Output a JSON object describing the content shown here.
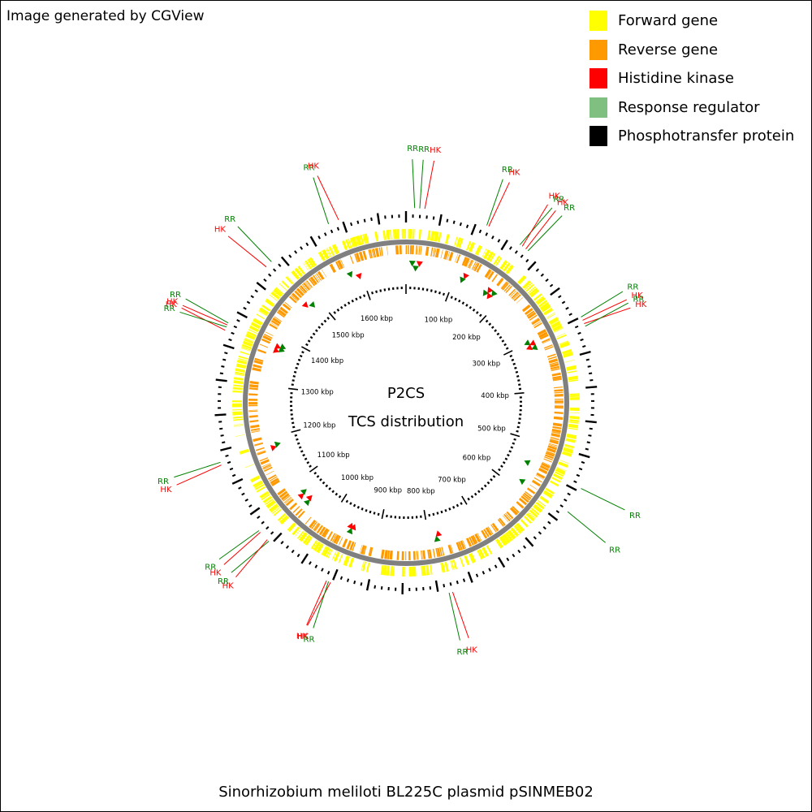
{
  "credit": "Image generated by CGView",
  "caption": "Sinorhizobium meliloti BL225C plasmid pSINMEB02",
  "center_title": "P2CS",
  "center_subtitle": "TCS distribution",
  "legend": [
    {
      "label": "Forward gene",
      "color": "#ffff00"
    },
    {
      "label": "Reverse gene",
      "color": "#ff9900"
    },
    {
      "label": "Histidine kinase",
      "color": "#ff0000"
    },
    {
      "label": "Response regulator",
      "color": "#7fbf7f"
    },
    {
      "label": "Phosphotransfer protein",
      "color": "#000000"
    }
  ],
  "colors": {
    "forward": "#ffff00",
    "reverse": "#ff9900",
    "hk": "#ff0000",
    "rr": "#008000",
    "backbone": "#808080",
    "ticks": "#000000"
  },
  "chart_data": {
    "type": "circular-genome-map",
    "genome_length_kbp": 1690,
    "tick_labels": [
      "100 kbp",
      "200 kbp",
      "300 kbp",
      "400 kbp",
      "500 kbp",
      "600 kbp",
      "700 kbp",
      "800 kbp",
      "900 kbp",
      "1000 kbp",
      "1100 kbp",
      "1200 kbp",
      "1300 kbp",
      "1400 kbp",
      "1500 kbp",
      "1600 kbp"
    ],
    "features": [
      {
        "label": "RR",
        "type": "RR",
        "pos_kbp": 12,
        "strand": "reverse"
      },
      {
        "label": "RR",
        "type": "RR",
        "pos_kbp": 19,
        "strand": "reverse"
      },
      {
        "label": "HK",
        "type": "HK",
        "pos_kbp": 26,
        "strand": "reverse"
      },
      {
        "label": "RR",
        "type": "RR",
        "pos_kbp": 115,
        "strand": "reverse"
      },
      {
        "label": "HK",
        "type": "HK",
        "pos_kbp": 118,
        "strand": "reverse"
      },
      {
        "label": "RR",
        "type": "RR",
        "pos_kbp": 168,
        "strand": "reverse"
      },
      {
        "label": "HK",
        "type": "HK",
        "pos_kbp": 172,
        "strand": "reverse"
      },
      {
        "label": "HK",
        "type": "HK",
        "pos_kbp": 178,
        "strand": "reverse"
      },
      {
        "label": "RR",
        "type": "RR",
        "pos_kbp": 182,
        "strand": "reverse"
      },
      {
        "label": "RR",
        "type": "RR",
        "pos_kbp": 300,
        "strand": "reverse"
      },
      {
        "label": "HK",
        "type": "HK",
        "pos_kbp": 305,
        "strand": "reverse"
      },
      {
        "label": "HK",
        "type": "HK",
        "pos_kbp": 310,
        "strand": "reverse"
      },
      {
        "label": "RR",
        "type": "RR",
        "pos_kbp": 314,
        "strand": "reverse"
      },
      {
        "label": "RR",
        "type": "RR",
        "pos_kbp": 545,
        "strand": "reverse"
      },
      {
        "label": "RR",
        "type": "RR",
        "pos_kbp": 582,
        "strand": "reverse"
      },
      {
        "label": "HK",
        "type": "HK",
        "pos_kbp": 780,
        "strand": "reverse"
      },
      {
        "label": "RR",
        "type": "RR",
        "pos_kbp": 785,
        "strand": "reverse"
      },
      {
        "label": "HK",
        "type": "HK",
        "pos_kbp": 952,
        "strand": "reverse"
      },
      {
        "label": "RR",
        "type": "RR",
        "pos_kbp": 955,
        "strand": "reverse"
      },
      {
        "label": "HK",
        "type": "HK",
        "pos_kbp": 958,
        "strand": "reverse"
      },
      {
        "label": "RR",
        "type": "RR",
        "pos_kbp": 1055,
        "strand": "reverse"
      },
      {
        "label": "HK",
        "type": "HK",
        "pos_kbp": 1058,
        "strand": "reverse"
      },
      {
        "label": "HK",
        "type": "HK",
        "pos_kbp": 1072,
        "strand": "reverse"
      },
      {
        "label": "RR",
        "type": "RR",
        "pos_kbp": 1075,
        "strand": "reverse"
      },
      {
        "label": "HK",
        "type": "HK",
        "pos_kbp": 1180,
        "strand": "reverse"
      },
      {
        "label": "RR",
        "type": "RR",
        "pos_kbp": 1184,
        "strand": "reverse"
      },
      {
        "label": "HK",
        "type": "HK",
        "pos_kbp": 1370,
        "strand": "reverse"
      },
      {
        "label": "RR",
        "type": "RR",
        "pos_kbp": 1375,
        "strand": "reverse"
      },
      {
        "label": "HK",
        "type": "HK",
        "pos_kbp": 1378,
        "strand": "reverse"
      },
      {
        "label": "RR",
        "type": "RR",
        "pos_kbp": 1381,
        "strand": "reverse"
      },
      {
        "label": "HK",
        "type": "HK",
        "pos_kbp": 1475,
        "strand": "reverse"
      },
      {
        "label": "RR",
        "type": "RR",
        "pos_kbp": 1485,
        "strand": "reverse"
      },
      {
        "label": "RR",
        "type": "RR",
        "pos_kbp": 1580,
        "strand": "reverse"
      },
      {
        "label": "HK",
        "type": "HK",
        "pos_kbp": 1595,
        "strand": "reverse"
      }
    ]
  }
}
